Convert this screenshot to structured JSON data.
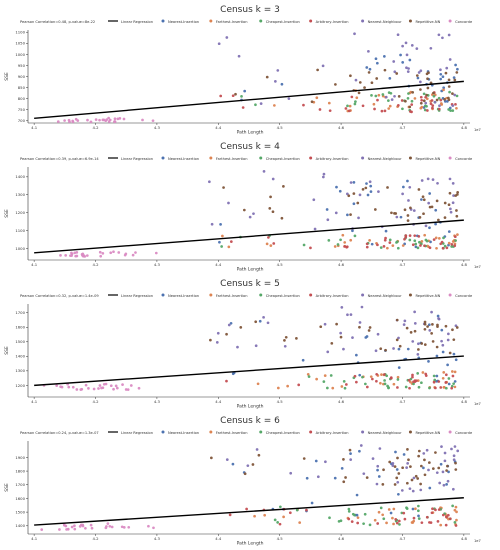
{
  "chart_data": [
    {
      "type": "scatter",
      "title": "Census k = 3",
      "xlabel": "Path Length",
      "ylabel": "SSE",
      "x_offset_label": "1e7",
      "xlim": [
        4.09,
        4.81
      ],
      "ylim": [
        690,
        1110
      ],
      "xticks": [
        4.1,
        4.2,
        4.3,
        4.4,
        4.5,
        4.6,
        4.7,
        4.8
      ],
      "yticks": [
        700,
        750,
        800,
        850,
        900,
        950,
        1000,
        1050,
        1100
      ],
      "legend": {
        "placement": "top",
        "pearson_label": "Pearson Correlation=0.48, p-value=8e-22",
        "regression_label": "Linear Regression"
      },
      "regression": {
        "x": [
          4.1,
          4.8
        ],
        "y": [
          711,
          878
        ]
      },
      "series": [
        {
          "name": "Nearest-Insertion",
          "color": "#4c72b0",
          "y_range": [
            752,
            1010
          ]
        },
        {
          "name": "Farthest-Insertion",
          "color": "#dd8452",
          "y_range": [
            740,
            840
          ]
        },
        {
          "name": "Cheapest-Insertion",
          "color": "#55a868",
          "y_range": [
            745,
            835
          ]
        },
        {
          "name": "Arbitrary-Insertion",
          "color": "#c44e52",
          "y_range": [
            740,
            830
          ]
        },
        {
          "name": "Nearest-Neighbour",
          "color": "#8172b3",
          "y_range": [
            765,
            1100
          ]
        },
        {
          "name": "Repetitive-NN",
          "color": "#7f5539",
          "y_range": [
            760,
            930
          ]
        },
        {
          "name": "Concorde",
          "color": "#da8bc3",
          "y_range": [
            695,
            715
          ]
        }
      ]
    },
    {
      "type": "scatter",
      "title": "Census k = 4",
      "xlabel": "Path Length",
      "ylabel": "SSE",
      "x_offset_label": "1e7",
      "xlim": [
        4.09,
        4.81
      ],
      "ylim": [
        935,
        1455
      ],
      "xticks": [
        4.1,
        4.2,
        4.3,
        4.4,
        4.5,
        4.6,
        4.7,
        4.8
      ],
      "yticks": [
        1000,
        1100,
        1200,
        1300,
        1400
      ],
      "legend": {
        "placement": "top",
        "pearson_label": "Pearson Correlation=0.39, p-value=6.9e-14",
        "regression_label": "Linear Regression"
      },
      "regression": {
        "x": [
          4.1,
          4.8
        ],
        "y": [
          975,
          1158
        ]
      },
      "series": [
        {
          "name": "Nearest-Insertion",
          "color": "#4c72b0",
          "y_range": [
            1000,
            1400
          ]
        },
        {
          "name": "Farthest-Insertion",
          "color": "#dd8452",
          "y_range": [
            1000,
            1080
          ]
        },
        {
          "name": "Cheapest-Insertion",
          "color": "#55a868",
          "y_range": [
            1000,
            1080
          ]
        },
        {
          "name": "Arbitrary-Insertion",
          "color": "#c44e52",
          "y_range": [
            1000,
            1075
          ]
        },
        {
          "name": "Nearest-Neighbour",
          "color": "#8172b3",
          "y_range": [
            1100,
            1440
          ]
        },
        {
          "name": "Repetitive-NN",
          "color": "#7f5539",
          "y_range": [
            1150,
            1350
          ]
        },
        {
          "name": "Concorde",
          "color": "#da8bc3",
          "y_range": [
            955,
            985
          ]
        }
      ]
    },
    {
      "type": "scatter",
      "title": "Census k = 5",
      "xlabel": "Path Length",
      "ylabel": "SSE",
      "x_offset_label": "1e7",
      "xlim": [
        4.09,
        4.81
      ],
      "ylim": [
        1120,
        1760
      ],
      "xticks": [
        4.1,
        4.2,
        4.3,
        4.4,
        4.5,
        4.6,
        4.7,
        4.8
      ],
      "yticks": [
        1200,
        1300,
        1400,
        1500,
        1600,
        1700
      ],
      "legend": {
        "placement": "top",
        "pearson_label": "Pearson Correlation=0.32, p-value=1.4e-09",
        "regression_label": "Linear Regression"
      },
      "regression": {
        "x": [
          4.1,
          4.8
        ],
        "y": [
          1200,
          1402
        ]
      },
      "series": [
        {
          "name": "Nearest-Insertion",
          "color": "#4c72b0",
          "y_range": [
            1200,
            1700
          ]
        },
        {
          "name": "Farthest-Insertion",
          "color": "#dd8452",
          "y_range": [
            1180,
            1300
          ]
        },
        {
          "name": "Cheapest-Insertion",
          "color": "#55a868",
          "y_range": [
            1180,
            1300
          ]
        },
        {
          "name": "Arbitrary-Insertion",
          "color": "#c44e52",
          "y_range": [
            1180,
            1290
          ]
        },
        {
          "name": "Nearest-Neighbour",
          "color": "#8172b3",
          "y_range": [
            1400,
            1740
          ]
        },
        {
          "name": "Repetitive-NN",
          "color": "#7f5539",
          "y_range": [
            1420,
            1650
          ]
        },
        {
          "name": "Concorde",
          "color": "#da8bc3",
          "y_range": [
            1170,
            1210
          ]
        }
      ]
    },
    {
      "type": "scatter",
      "title": "Census k = 6",
      "xlabel": "Path Length",
      "ylabel": "SSE",
      "x_offset_label": "1e7",
      "xlim": [
        4.09,
        4.81
      ],
      "ylim": [
        1340,
        2020
      ],
      "xticks": [
        4.1,
        4.2,
        4.3,
        4.4,
        4.5,
        4.6,
        4.7,
        4.8
      ],
      "yticks": [
        1400,
        1500,
        1600,
        1700,
        1800,
        1900
      ],
      "legend": {
        "placement": "top",
        "pearson_label": "Pearson Correlation=0.24, p-value=1.3e-07",
        "regression_label": "Linear Regression"
      },
      "regression": {
        "x": [
          4.1,
          4.8
        ],
        "y": [
          1405,
          1605
        ]
      },
      "series": [
        {
          "name": "Nearest-Insertion",
          "color": "#4c72b0",
          "y_range": [
            1420,
            1950
          ]
        },
        {
          "name": "Farthest-Insertion",
          "color": "#dd8452",
          "y_range": [
            1400,
            1540
          ]
        },
        {
          "name": "Cheapest-Insertion",
          "color": "#55a868",
          "y_range": [
            1400,
            1550
          ]
        },
        {
          "name": "Arbitrary-Insertion",
          "color": "#c44e52",
          "y_range": [
            1400,
            1530
          ]
        },
        {
          "name": "Nearest-Neighbour",
          "color": "#8172b3",
          "y_range": [
            1650,
            1990
          ]
        },
        {
          "name": "Repetitive-NN",
          "color": "#7f5539",
          "y_range": [
            1700,
            1960
          ]
        },
        {
          "name": "Concorde",
          "color": "#da8bc3",
          "y_range": [
            1370,
            1420
          ]
        }
      ]
    }
  ]
}
